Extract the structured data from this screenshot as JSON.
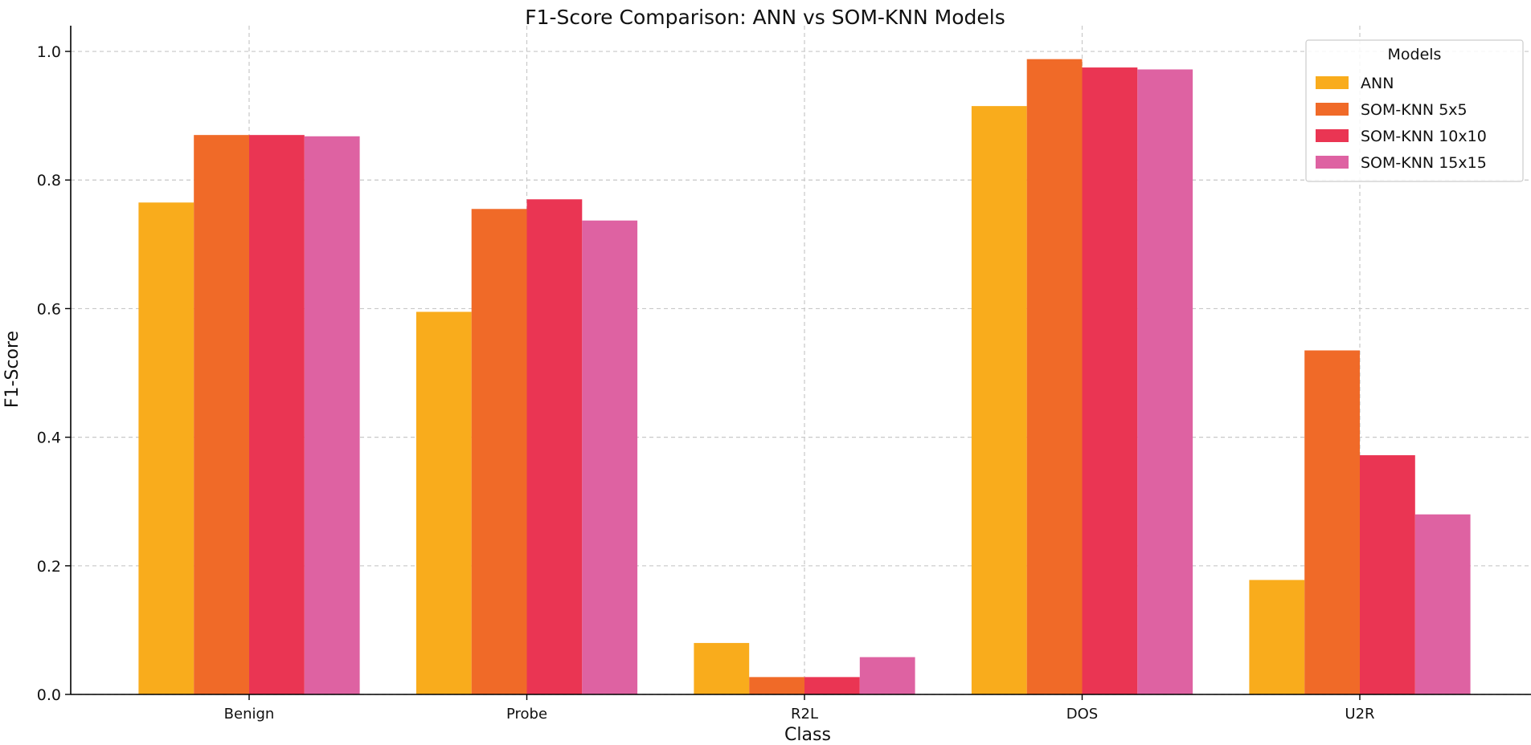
{
  "chart_data": {
    "type": "bar",
    "title": "F1-Score Comparison: ANN vs SOM-KNN Models",
    "xlabel": "Class",
    "ylabel": "F1-Score",
    "ylim": [
      0,
      1.0
    ],
    "yticks": [
      0.0,
      0.2,
      0.4,
      0.6,
      0.8,
      1.0
    ],
    "ytick_labels": [
      "0.0",
      "0.2",
      "0.4",
      "0.6",
      "0.8",
      "1.0"
    ],
    "grid": true,
    "categories": [
      "Benign",
      "Probe",
      "R2L",
      "DOS",
      "U2R"
    ],
    "legend": {
      "title": "Models",
      "placement": "top-right"
    },
    "series": [
      {
        "name": "ANN",
        "color": "#f9ac1c",
        "values": [
          0.765,
          0.595,
          0.08,
          0.915,
          0.178
        ]
      },
      {
        "name": "SOM-KNN 5x5",
        "color": "#f06a28",
        "values": [
          0.87,
          0.755,
          0.027,
          0.988,
          0.535
        ]
      },
      {
        "name": "SOM-KNN 10x10",
        "color": "#ea3553",
        "values": [
          0.87,
          0.77,
          0.027,
          0.975,
          0.372
        ]
      },
      {
        "name": "SOM-KNN 15x15",
        "color": "#de62a2",
        "values": [
          0.868,
          0.737,
          0.058,
          0.972,
          0.28
        ]
      }
    ]
  }
}
